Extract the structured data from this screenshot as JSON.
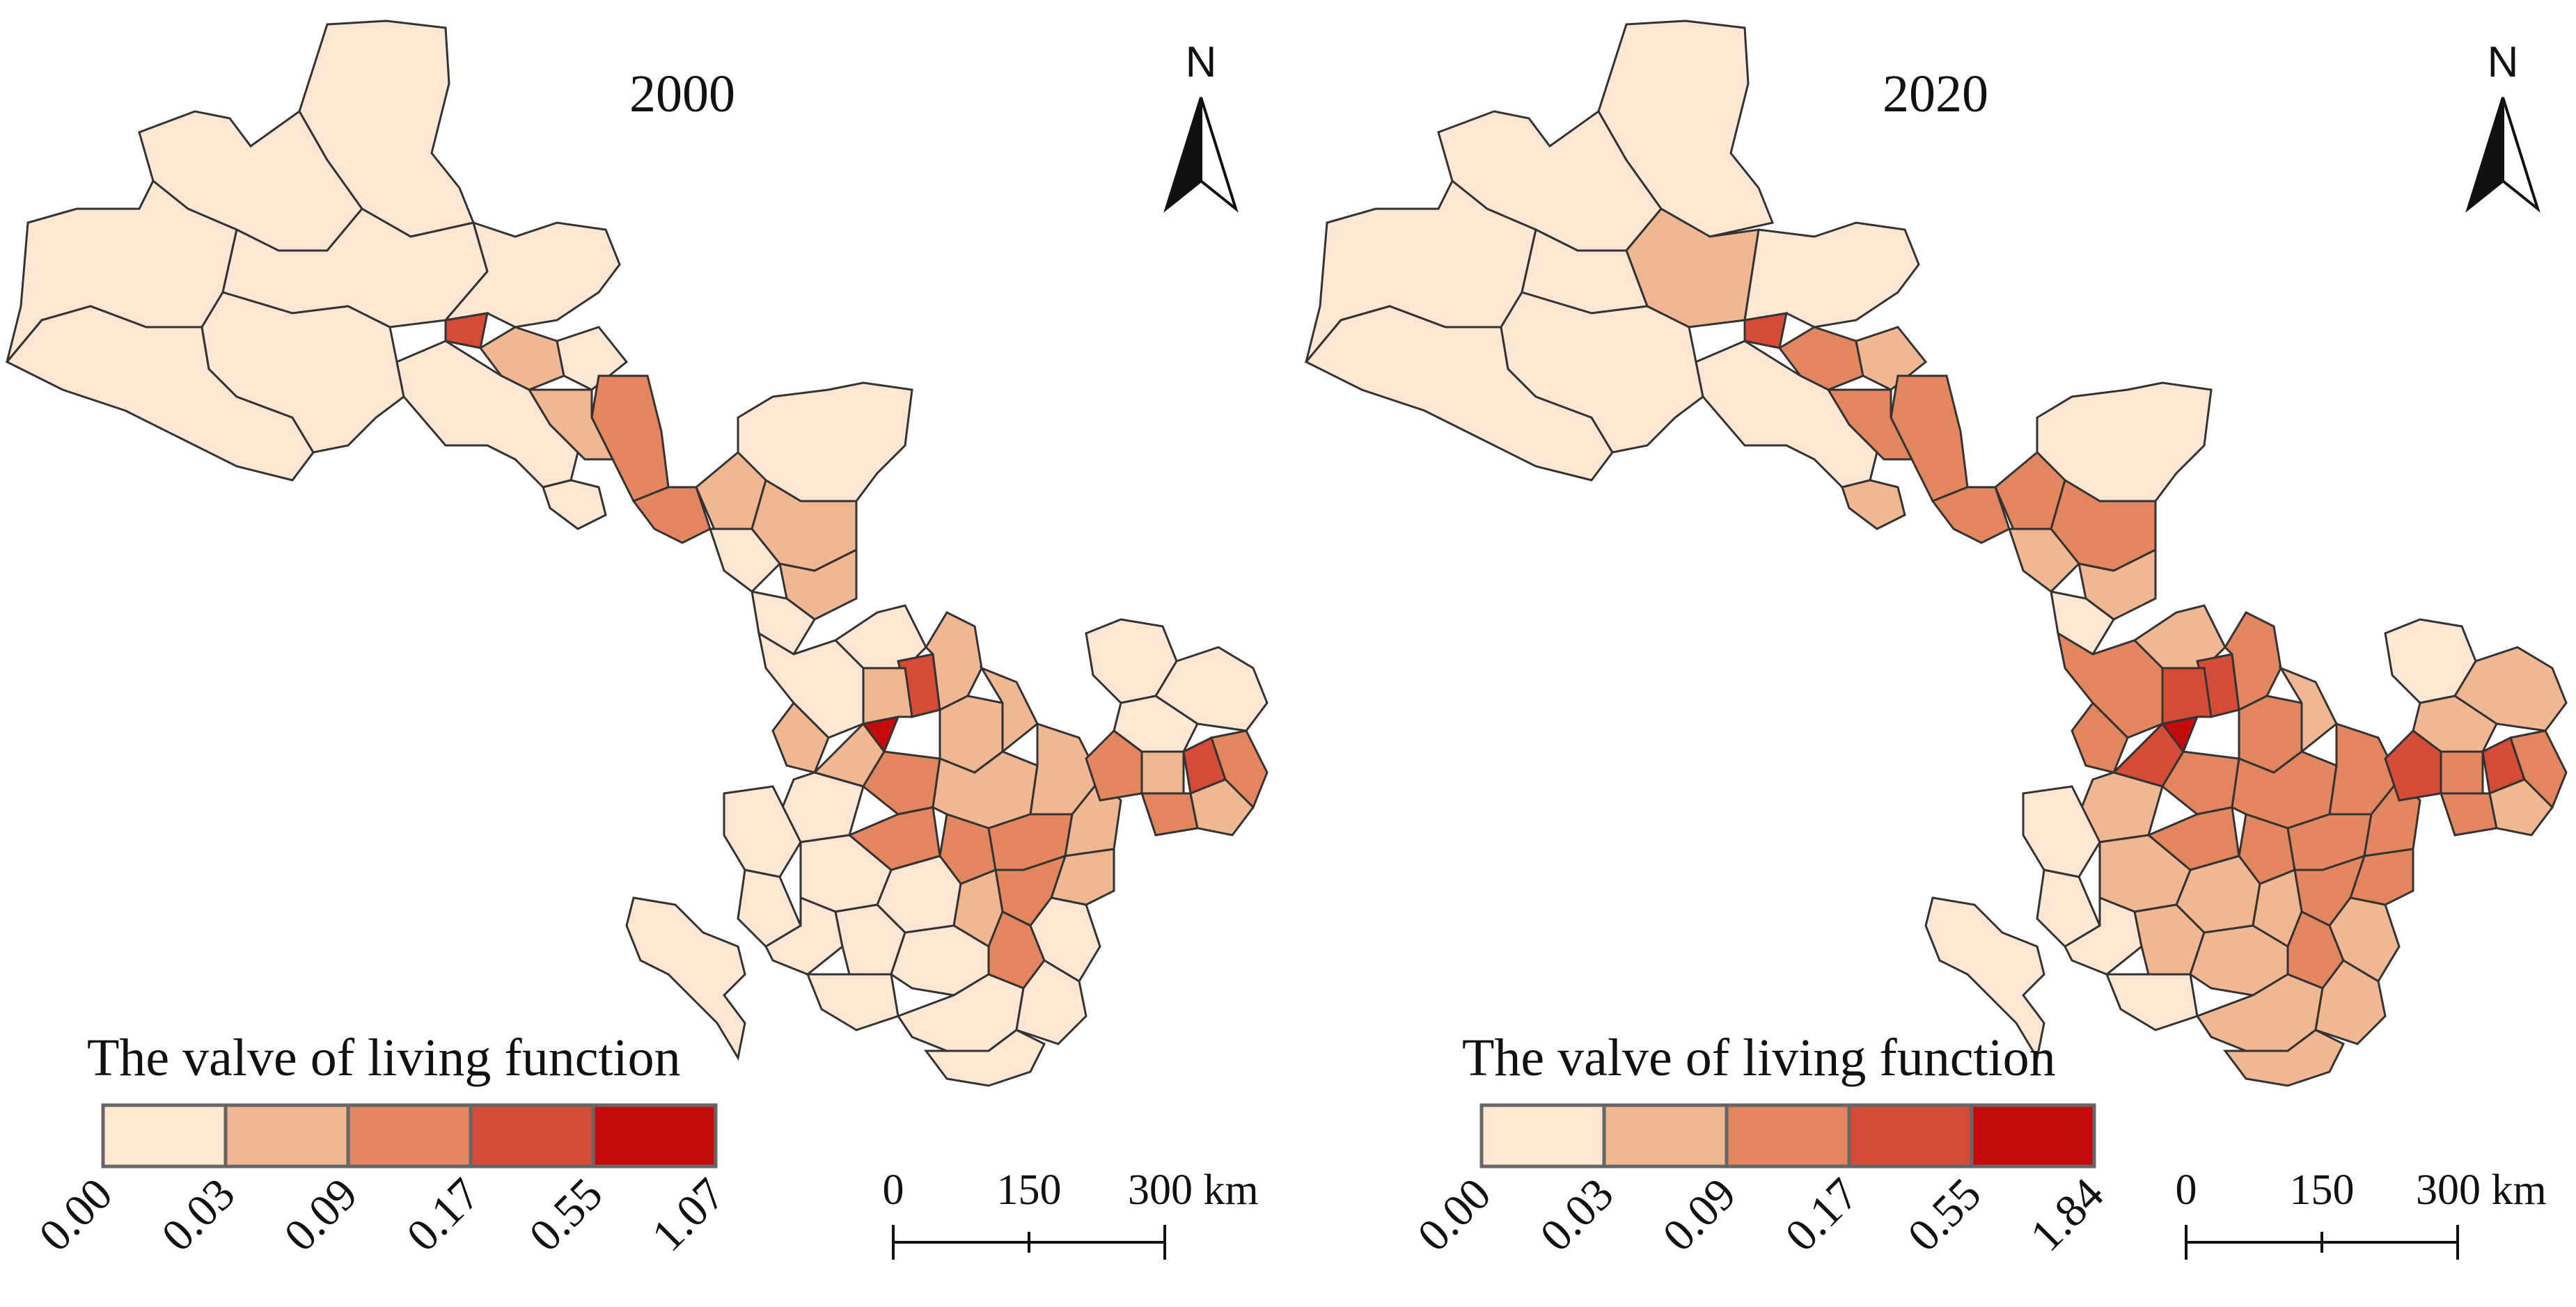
{
  "figure": {
    "panels": [
      {
        "year": "2000",
        "legend": {
          "title": "The valve of living function",
          "breaks": [
            "0.00",
            "0.03",
            "0.09",
            "0.17",
            "0.55",
            "1.07"
          ]
        },
        "scale_bar": {
          "labels": [
            "0",
            "150",
            "300 km"
          ]
        },
        "north_label": "N"
      },
      {
        "year": "2020",
        "legend": {
          "title": "The valve of living function",
          "breaks": [
            "0.00",
            "0.03",
            "0.09",
            "0.17",
            "0.55",
            "1.84"
          ]
        },
        "scale_bar": {
          "labels": [
            "0",
            "150",
            "300 km"
          ]
        },
        "north_label": "N"
      }
    ],
    "class_colors": [
      "#fde7d3",
      "#efb893",
      "#e3865f",
      "#d44c37",
      "#c40c0c"
    ],
    "map_outline_color": "#333333"
  }
}
